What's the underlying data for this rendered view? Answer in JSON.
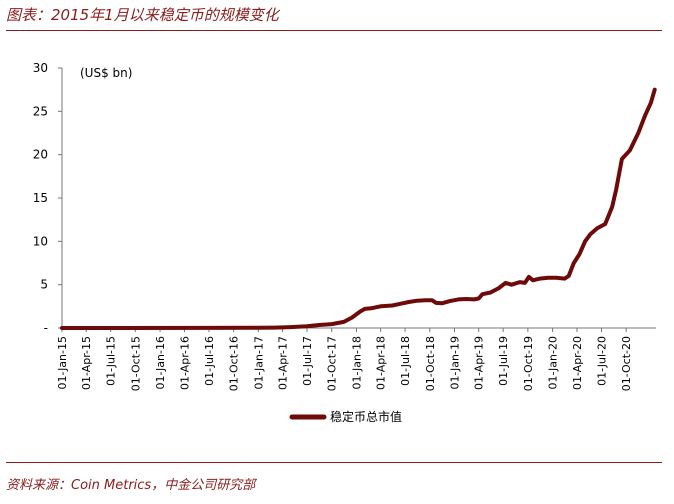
{
  "header": {
    "title": "图表：2015年1月以来稳定币的规模变化"
  },
  "footer": {
    "source": "资料来源：Coin Metrics，中金公司研究部"
  },
  "colors": {
    "accent": "#8a1c1c",
    "series": "#6e0a0a",
    "axis": "#777777"
  },
  "chart_data": {
    "type": "line",
    "unit_label": "(US$ bn)",
    "ylim": [
      0,
      30
    ],
    "yticks": [
      {
        "value": 0,
        "label": "-"
      },
      {
        "value": 5,
        "label": "5"
      },
      {
        "value": 10,
        "label": "10"
      },
      {
        "value": 15,
        "label": "15"
      },
      {
        "value": 20,
        "label": "20"
      },
      {
        "value": 25,
        "label": "25"
      },
      {
        "value": 30,
        "label": "30"
      }
    ],
    "x_tick_labels": [
      "01-Jan-15",
      "01-Apr-15",
      "01-Jul-15",
      "01-Oct-15",
      "01-Jan-16",
      "01-Apr-16",
      "01-Jul-16",
      "01-Oct-16",
      "01-Jan-17",
      "01-Apr-17",
      "01-Jul-17",
      "01-Oct-17",
      "01-Jan-18",
      "01-Apr-18",
      "01-Jul-18",
      "01-Oct-18",
      "01-Jan-19",
      "01-Apr-19",
      "01-Jul-19",
      "01-Oct-19",
      "01-Jan-20",
      "01-Apr-20",
      "01-Jul-20",
      "01-Oct-20"
    ],
    "xlim": [
      "2015-01-01",
      "2021-01-20"
    ],
    "legend": {
      "position": "bottom"
    },
    "series": [
      {
        "name": "稳定币总市值",
        "points": [
          [
            "2015-01-01",
            0.0
          ],
          [
            "2016-06-01",
            0.01
          ],
          [
            "2017-01-01",
            0.02
          ],
          [
            "2017-03-01",
            0.05
          ],
          [
            "2017-05-01",
            0.1
          ],
          [
            "2017-07-01",
            0.2
          ],
          [
            "2017-08-15",
            0.35
          ],
          [
            "2017-10-01",
            0.45
          ],
          [
            "2017-11-15",
            0.7
          ],
          [
            "2017-12-15",
            1.2
          ],
          [
            "2018-01-15",
            1.9
          ],
          [
            "2018-02-01",
            2.2
          ],
          [
            "2018-03-01",
            2.3
          ],
          [
            "2018-04-01",
            2.5
          ],
          [
            "2018-05-15",
            2.6
          ],
          [
            "2018-06-15",
            2.8
          ],
          [
            "2018-07-15",
            3.0
          ],
          [
            "2018-08-15",
            3.15
          ],
          [
            "2018-09-15",
            3.2
          ],
          [
            "2018-10-10",
            3.2
          ],
          [
            "2018-10-25",
            2.9
          ],
          [
            "2018-11-15",
            2.85
          ],
          [
            "2018-12-15",
            3.1
          ],
          [
            "2019-01-15",
            3.3
          ],
          [
            "2019-02-15",
            3.35
          ],
          [
            "2019-03-15",
            3.3
          ],
          [
            "2019-04-01",
            3.4
          ],
          [
            "2019-04-15",
            3.9
          ],
          [
            "2019-05-15",
            4.1
          ],
          [
            "2019-06-15",
            4.6
          ],
          [
            "2019-07-10",
            5.2
          ],
          [
            "2019-08-01",
            5.0
          ],
          [
            "2019-09-01",
            5.3
          ],
          [
            "2019-09-20",
            5.2
          ],
          [
            "2019-10-05",
            5.9
          ],
          [
            "2019-10-20",
            5.5
          ],
          [
            "2019-11-15",
            5.7
          ],
          [
            "2019-12-15",
            5.8
          ],
          [
            "2020-01-15",
            5.8
          ],
          [
            "2020-02-15",
            5.7
          ],
          [
            "2020-03-01",
            6.0
          ],
          [
            "2020-03-20",
            7.5
          ],
          [
            "2020-04-10",
            8.5
          ],
          [
            "2020-05-01",
            10.0
          ],
          [
            "2020-05-20",
            10.8
          ],
          [
            "2020-06-15",
            11.5
          ],
          [
            "2020-07-15",
            12.0
          ],
          [
            "2020-08-10",
            14.0
          ],
          [
            "2020-08-25",
            16.0
          ],
          [
            "2020-09-15",
            19.5
          ],
          [
            "2020-10-15",
            20.5
          ],
          [
            "2020-11-15",
            22.5
          ],
          [
            "2020-12-10",
            24.5
          ],
          [
            "2021-01-01",
            26.0
          ],
          [
            "2021-01-15",
            27.5
          ]
        ]
      }
    ]
  }
}
